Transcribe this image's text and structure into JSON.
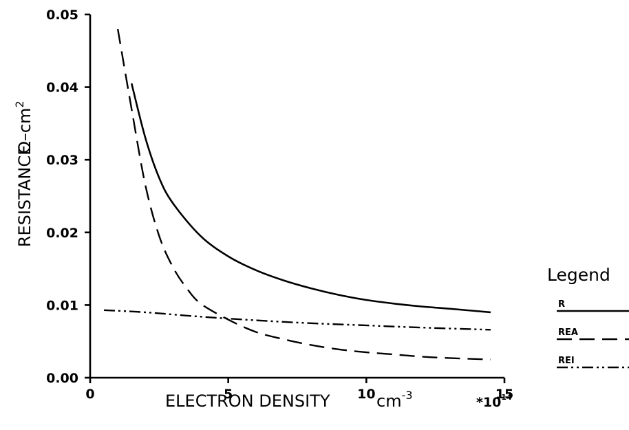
{
  "chart_data": {
    "type": "line",
    "title": "",
    "xlabel": "ELECTRON DENSITY",
    "xunit": "cm",
    "xunit_exp": "-3",
    "xscale": "*10",
    "xscale_exp": "14",
    "ylabel": "RESISTANCE",
    "yunit": "Ω–cm",
    "yunit_exp": "2",
    "xlim": [
      0,
      15
    ],
    "ylim": [
      0.0,
      0.05
    ],
    "xticks": [
      "0",
      "5",
      "10",
      "15"
    ],
    "yticks": [
      "0.00",
      "0.01",
      "0.02",
      "0.03",
      "0.04",
      "0.05"
    ],
    "grid": false,
    "legend": {
      "title": "Legend",
      "placement": "right"
    },
    "series": [
      {
        "name": "R",
        "style": "solid",
        "x": [
          1.5,
          2,
          2.5,
          3,
          4,
          5,
          6,
          7,
          8,
          9,
          10,
          11,
          12,
          13,
          14.5
        ],
        "y": [
          0.0405,
          0.033,
          0.0275,
          0.024,
          0.0195,
          0.0167,
          0.0148,
          0.0134,
          0.0123,
          0.0114,
          0.0107,
          0.0102,
          0.0098,
          0.0095,
          0.009
        ]
      },
      {
        "name": "REA",
        "style": "dashed",
        "x": [
          1,
          1.5,
          2,
          2.5,
          3,
          3.5,
          4,
          5,
          6,
          7,
          8,
          9,
          10,
          11,
          12,
          13,
          14.5
        ],
        "y": [
          0.048,
          0.037,
          0.0265,
          0.0195,
          0.0152,
          0.0123,
          0.0102,
          0.008,
          0.0063,
          0.0053,
          0.0045,
          0.0039,
          0.0035,
          0.0032,
          0.0029,
          0.0027,
          0.0025
        ]
      },
      {
        "name": "REI",
        "style": "dash-dot-dot",
        "x": [
          0.5,
          2,
          4,
          6,
          8,
          10,
          12,
          14.5
        ],
        "y": [
          0.0093,
          0.009,
          0.0084,
          0.0079,
          0.0075,
          0.0072,
          0.0069,
          0.0066
        ]
      }
    ]
  }
}
